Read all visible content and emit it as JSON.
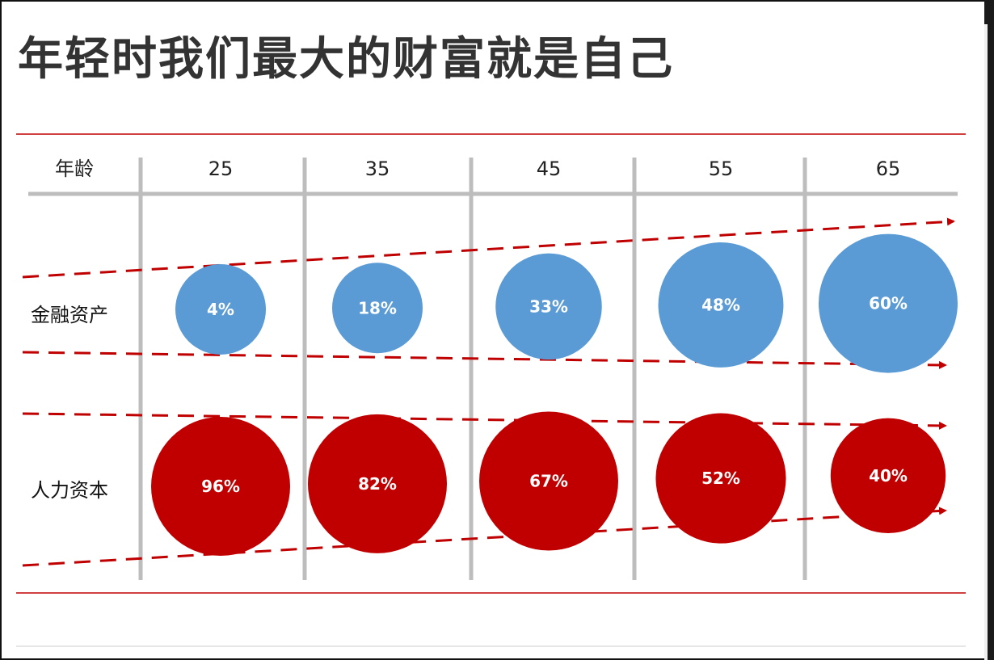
{
  "title": "年轻时我们最大的财富就是自己",
  "colors": {
    "financial": "#5b9bd5",
    "human": "#c00000",
    "rule": "#c00000",
    "grid": "#bdbdbd",
    "arrow": "#c00000"
  },
  "chart_data": {
    "type": "bubble-table",
    "header_label": "年龄",
    "columns": [
      "25",
      "35",
      "45",
      "55",
      "65"
    ],
    "rows": [
      {
        "label": "金融资产",
        "values": [
          4,
          18,
          33,
          48,
          60
        ],
        "display": [
          "4%",
          "18%",
          "33%",
          "48%",
          "60%"
        ]
      },
      {
        "label": "人力资本",
        "values": [
          96,
          82,
          67,
          52,
          40
        ],
        "display": [
          "96%",
          "82%",
          "67%",
          "52%",
          "40%"
        ]
      }
    ],
    "unit": "%"
  }
}
